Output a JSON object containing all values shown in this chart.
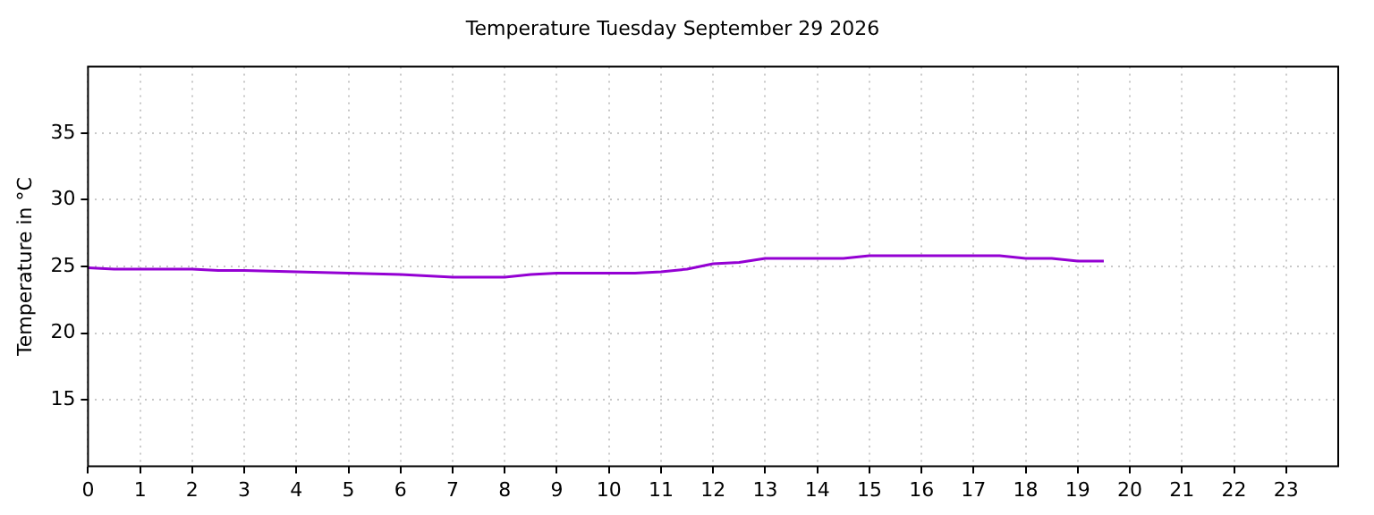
{
  "chart_data": {
    "type": "line",
    "title": "Temperature Tuesday September 29 2026",
    "ylabel": "Temperature in °C",
    "x": [
      0,
      0.5,
      1,
      2,
      2.5,
      3,
      4,
      5,
      6,
      6.5,
      7,
      8,
      8.5,
      9,
      10,
      10.5,
      11,
      11.5,
      12,
      12.5,
      13,
      14,
      14.5,
      15,
      16,
      17,
      17.5,
      18,
      18.5,
      19,
      19.5
    ],
    "series": [
      {
        "color": "#9400d3",
        "values": [
          24.9,
          24.8,
          24.8,
          24.8,
          24.7,
          24.7,
          24.6,
          24.5,
          24.4,
          24.3,
          24.2,
          24.2,
          24.4,
          24.5,
          24.5,
          24.5,
          24.6,
          24.8,
          25.2,
          25.3,
          25.6,
          25.6,
          25.6,
          25.8,
          25.8,
          25.8,
          25.8,
          25.6,
          25.6,
          25.4,
          25.4
        ]
      }
    ],
    "xlim": [
      0,
      24
    ],
    "xticks": [
      0,
      1,
      2,
      3,
      4,
      5,
      6,
      7,
      8,
      9,
      10,
      11,
      12,
      13,
      14,
      15,
      16,
      17,
      18,
      19,
      20,
      21,
      22,
      23
    ],
    "ylim": [
      10,
      40
    ],
    "yticks": [
      15,
      20,
      25,
      30,
      35
    ],
    "grid": true,
    "legend": false,
    "marker": "none",
    "line_style": "solid"
  }
}
